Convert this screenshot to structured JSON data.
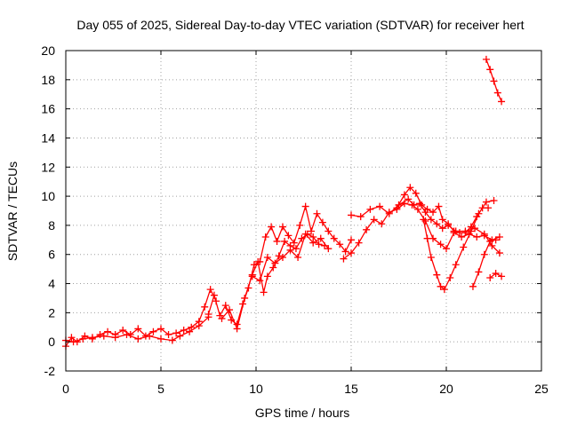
{
  "chart_data": {
    "type": "scatter",
    "title": "Day 055 of 2025, Sidereal Day-to-day VTEC variation (SDTVAR) for receiver hert",
    "xlabel": "GPS time / hours",
    "ylabel": "SDTVAR / TECUs",
    "xlim": [
      0,
      25
    ],
    "ylim": [
      -2,
      20
    ],
    "xticks": [
      "0",
      "5",
      "10",
      "15",
      "20",
      "25"
    ],
    "yticks": [
      "-2",
      "0",
      "2",
      "4",
      "6",
      "8",
      "10",
      "12",
      "14",
      "16",
      "18",
      "20"
    ],
    "grid": true,
    "marker": "plus",
    "color": "#ff0000",
    "series": [
      {
        "x": [
          0,
          0.3,
          0.6,
          1,
          1.4,
          1.8,
          2.2,
          2.6,
          3,
          3.4,
          3.8,
          4.2,
          4.6,
          5,
          5.4,
          5.8,
          6.2,
          6.6,
          7,
          7.3,
          7.6,
          7.9
        ],
        "y": [
          -0.3,
          0.3,
          0,
          0.4,
          0.2,
          0.5,
          0.7,
          0.5,
          0.8,
          0.5,
          0.9,
          0.4,
          0.7,
          0.9,
          0.5,
          0.6,
          0.8,
          1,
          1.4,
          2.4,
          3.6,
          2.8
        ]
      },
      {
        "x": [
          0,
          0.4,
          0.9,
          1.4,
          2,
          2.6,
          3.2,
          3.8,
          4.4,
          5,
          5.6,
          6,
          6.5,
          7,
          7.5
        ],
        "y": [
          0.1,
          0,
          0.2,
          0.3,
          0.4,
          0.3,
          0.5,
          0.2,
          0.4,
          0.2,
          0.1,
          0.4,
          0.7,
          1.1,
          1.7
        ]
      },
      {
        "x": [
          7.5,
          7.8,
          8.1,
          8.4,
          8.7,
          9,
          9.3,
          9.6,
          9.9,
          10.2,
          10.5,
          10.8,
          11.1,
          11.4,
          11.7,
          12,
          12.3,
          12.6,
          12.9,
          13.2,
          13.5,
          13.8,
          14.1,
          14.4,
          14.7,
          15
        ],
        "y": [
          1.9,
          3.2,
          1.8,
          2.5,
          1.5,
          1.2,
          2.6,
          3.7,
          5.3,
          5.5,
          7.2,
          7.9,
          6.9,
          7.9,
          7.3,
          6.8,
          8,
          9.3,
          7.6,
          8.8,
          8.2,
          7.6,
          7.1,
          6.7,
          6.2,
          7
        ]
      },
      {
        "x": [
          8.2,
          8.6,
          9,
          9.4,
          9.8,
          10.1,
          10.4,
          10.6,
          10.9,
          11.2,
          11.5,
          11.8,
          12.1,
          12.4,
          12.7,
          13,
          13.3,
          13.6
        ],
        "y": [
          1.6,
          2.2,
          0.9,
          3,
          4.6,
          5.5,
          3.4,
          4.5,
          5.1,
          5.9,
          6.9,
          6.6,
          6.4,
          7.1,
          7.4,
          7.2,
          6.7,
          6.6
        ]
      },
      {
        "x": [
          9.8,
          10.2,
          10.6,
          11,
          11.4,
          11.8,
          12.2,
          12.6,
          13,
          13.4,
          13.8
        ],
        "y": [
          4.5,
          4.2,
          5.8,
          5.4,
          5.8,
          6.3,
          5.8,
          7.4,
          6.8,
          7.1,
          6.4
        ]
      },
      {
        "x": [
          14.6,
          15,
          15.4,
          15.8,
          16.2,
          16.6,
          17,
          17.4,
          17.8,
          18.2,
          18.5,
          18.9,
          19.3,
          19.7,
          20,
          20.4,
          20.8,
          21.2,
          21.6,
          22,
          22.4,
          22.8
        ],
        "y": [
          5.7,
          6.1,
          6.8,
          7.7,
          8.4,
          8.1,
          8.9,
          9.1,
          9.5,
          9.4,
          9.1,
          8.3,
          7.1,
          6.7,
          6.4,
          7.5,
          7.2,
          7.4,
          7.2,
          7.3,
          7,
          7.2
        ]
      },
      {
        "x": [
          15,
          15.5,
          16,
          16.5,
          17,
          17.5,
          18,
          18.3,
          18.6,
          18.9,
          19.2,
          19.5,
          19.8,
          20.1,
          20.5,
          21,
          21.5,
          22,
          22.4,
          22.8
        ],
        "y": [
          8.7,
          8.6,
          9.1,
          9.3,
          8.8,
          9.4,
          9.8,
          9.4,
          9.5,
          8.9,
          8.4,
          8.1,
          7.8,
          8,
          7.6,
          7.6,
          7.8,
          7.4,
          6.6,
          6.1
        ]
      },
      {
        "x": [
          17.4,
          17.8,
          18.1,
          18.4,
          18.7,
          19,
          19.3,
          19.6,
          19.8,
          20.1,
          20.4,
          20.7,
          21,
          21.3,
          21.6,
          21.9,
          22.2
        ],
        "y": [
          9.2,
          10.1,
          10.6,
          10.2,
          9.4,
          9.1,
          8.9,
          9.3,
          8.4,
          8.1,
          7.6,
          7.5,
          7.5,
          7.9,
          8.6,
          9.2,
          9.2
        ]
      },
      {
        "x": [
          18.8,
          19,
          19.2,
          19.5,
          19.7,
          19.9,
          20.2,
          20.5,
          20.9,
          21.3,
          21.7,
          22.1,
          22.5
        ],
        "y": [
          8.4,
          7.1,
          5.8,
          4.6,
          3.8,
          3.6,
          4.4,
          5.3,
          6.5,
          7.6,
          8.8,
          9.6,
          9.7
        ]
      },
      {
        "x": [
          21.4,
          21.7,
          22,
          22.3,
          22.6
        ],
        "y": [
          3.8,
          4.8,
          6,
          6.9,
          7
        ]
      },
      {
        "x": [
          22.3,
          22.6,
          22.9
        ],
        "y": [
          4.4,
          4.7,
          4.5
        ]
      },
      {
        "x": [
          22.1,
          22.3,
          22.5,
          22.7,
          22.9
        ],
        "y": [
          19.4,
          18.7,
          17.9,
          17.1,
          16.5
        ]
      }
    ]
  }
}
